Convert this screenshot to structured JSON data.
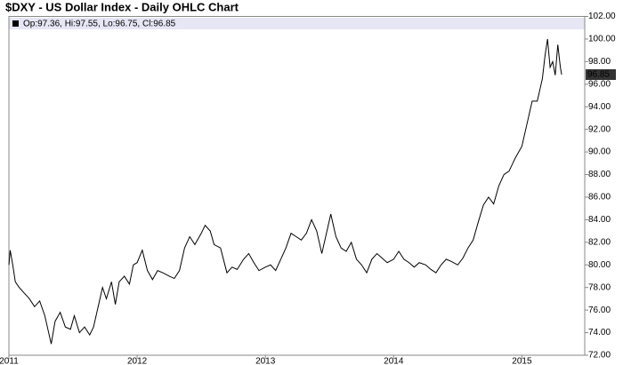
{
  "chart_data": {
    "type": "line",
    "title": "$DXY - US Dollar Index - Daily OHLC Chart",
    "legend_text": "Op:97.36, Hi:97.55, Lo:96.75, Cl:96.85",
    "last_value": 96.85,
    "xlim": [
      2011,
      2015.49
    ],
    "xticks": [
      2011,
      2012,
      2013,
      2014,
      2015
    ],
    "ylim": [
      72,
      102
    ],
    "yticks": [
      {
        "value": 72,
        "label": "72.00"
      },
      {
        "value": 74,
        "label": "74.00"
      },
      {
        "value": 76,
        "label": "76.00"
      },
      {
        "value": 78,
        "label": "78.00"
      },
      {
        "value": 80,
        "label": "80.00"
      },
      {
        "value": 82,
        "label": "82.00"
      },
      {
        "value": 84,
        "label": "84.00"
      },
      {
        "value": 86,
        "label": "86.00"
      },
      {
        "value": 88,
        "label": "88.00"
      },
      {
        "value": 90,
        "label": "90.00"
      },
      {
        "value": 92,
        "label": "92.00"
      },
      {
        "value": 94,
        "label": "94.00"
      },
      {
        "value": 96,
        "label": "96.00"
      },
      {
        "value": 98,
        "label": "98.00"
      },
      {
        "value": 100,
        "label": "100.00"
      },
      {
        "value": 102,
        "label": "102.00"
      }
    ],
    "grid": false,
    "color": "#000000",
    "x": [
      2011.0,
      2011.01,
      2011.03,
      2011.05,
      2011.08,
      2011.12,
      2011.16,
      2011.2,
      2011.24,
      2011.28,
      2011.31,
      2011.33,
      2011.36,
      2011.4,
      2011.44,
      2011.48,
      2011.51,
      2011.55,
      2011.59,
      2011.63,
      2011.66,
      2011.7,
      2011.73,
      2011.76,
      2011.8,
      2011.83,
      2011.86,
      2011.9,
      2011.94,
      2011.97,
      2012.0,
      2012.04,
      2012.08,
      2012.12,
      2012.16,
      2012.2,
      2012.25,
      2012.29,
      2012.33,
      2012.37,
      2012.41,
      2012.45,
      2012.5,
      2012.53,
      2012.57,
      2012.6,
      2012.65,
      2012.7,
      2012.74,
      2012.78,
      2012.83,
      2012.87,
      2012.91,
      2012.95,
      2013.0,
      2013.04,
      2013.08,
      2013.12,
      2013.16,
      2013.2,
      2013.24,
      2013.28,
      2013.32,
      2013.36,
      2013.4,
      2013.44,
      2013.47,
      2013.51,
      2013.55,
      2013.59,
      2013.63,
      2013.67,
      2013.71,
      2013.75,
      2013.79,
      2013.83,
      2013.87,
      2013.91,
      2013.95,
      2014.0,
      2014.04,
      2014.08,
      2014.12,
      2014.16,
      2014.2,
      2014.25,
      2014.29,
      2014.33,
      2014.37,
      2014.41,
      2014.45,
      2014.5,
      2014.54,
      2014.58,
      2014.62,
      2014.66,
      2014.7,
      2014.74,
      2014.78,
      2014.82,
      2014.86,
      2014.9,
      2014.95,
      2015.0,
      2015.04,
      2015.08,
      2015.12,
      2015.16,
      2015.18,
      2015.2,
      2015.22,
      2015.24,
      2015.26,
      2015.28,
      2015.3,
      2015.31
    ],
    "values": [
      80.0,
      81.3,
      80.0,
      78.5,
      78.0,
      77.5,
      77.0,
      76.3,
      76.8,
      75.5,
      74.0,
      73.0,
      75.0,
      75.8,
      74.5,
      74.3,
      75.5,
      74.0,
      74.5,
      73.8,
      74.5,
      76.5,
      78.0,
      77.0,
      78.5,
      76.5,
      78.5,
      79.0,
      78.3,
      80.0,
      80.2,
      81.3,
      79.5,
      78.7,
      79.5,
      79.3,
      79.0,
      78.8,
      79.5,
      81.5,
      82.5,
      81.8,
      82.8,
      83.5,
      83.0,
      81.8,
      81.5,
      79.3,
      79.8,
      79.6,
      80.5,
      81.0,
      80.2,
      79.5,
      79.8,
      80.0,
      79.5,
      80.5,
      81.5,
      82.8,
      82.5,
      82.2,
      82.8,
      84.0,
      83.0,
      81.0,
      82.5,
      84.5,
      82.5,
      81.5,
      81.2,
      82.0,
      80.5,
      80.0,
      79.3,
      80.5,
      81.0,
      80.6,
      80.2,
      80.5,
      81.2,
      80.5,
      80.2,
      79.8,
      80.2,
      80.0,
      79.6,
      79.3,
      80.0,
      80.5,
      80.3,
      80.0,
      80.6,
      81.5,
      82.2,
      83.8,
      85.3,
      86.0,
      85.4,
      87.0,
      88.0,
      88.3,
      89.5,
      90.5,
      92.5,
      94.5,
      94.5,
      96.5,
      98.5,
      100.0,
      97.5,
      98.0,
      96.8,
      99.5,
      97.5,
      96.85
    ]
  }
}
